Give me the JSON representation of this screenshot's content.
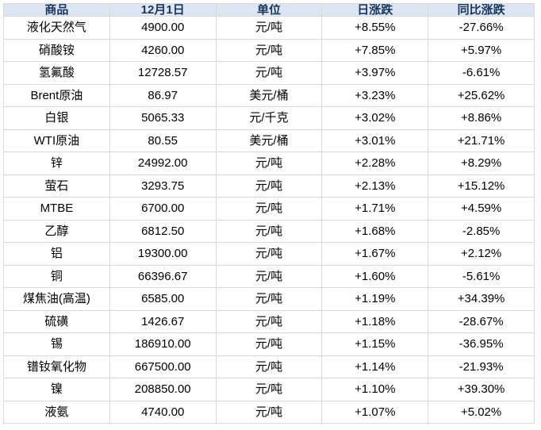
{
  "chart_data": {
    "type": "table",
    "title": "",
    "columns": [
      "商品",
      "12月1日",
      "单位",
      "日涨跌",
      "同比涨跌"
    ],
    "rows": [
      [
        "液化天然气",
        "4900.00",
        "元/吨",
        "+8.55%",
        "-27.66%"
      ],
      [
        "硝酸铵",
        "4260.00",
        "元/吨",
        "+7.85%",
        "+5.97%"
      ],
      [
        "氢氟酸",
        "12728.57",
        "元/吨",
        "+3.97%",
        "-6.61%"
      ],
      [
        "Brent原油",
        "86.97",
        "美元/桶",
        "+3.23%",
        "+25.62%"
      ],
      [
        "白银",
        "5065.33",
        "元/千克",
        "+3.02%",
        "+8.86%"
      ],
      [
        "WTI原油",
        "80.55",
        "美元/桶",
        "+3.01%",
        "+21.71%"
      ],
      [
        "锌",
        "24992.00",
        "元/吨",
        "+2.28%",
        "+8.29%"
      ],
      [
        "萤石",
        "3293.75",
        "元/吨",
        "+2.13%",
        "+15.12%"
      ],
      [
        "MTBE",
        "6700.00",
        "元/吨",
        "+1.71%",
        "+4.59%"
      ],
      [
        "乙醇",
        "6812.50",
        "元/吨",
        "+1.68%",
        "-2.85%"
      ],
      [
        "铝",
        "19300.00",
        "元/吨",
        "+1.67%",
        "+2.12%"
      ],
      [
        "铜",
        "66396.67",
        "元/吨",
        "+1.60%",
        "-5.61%"
      ],
      [
        "煤焦油(高温)",
        "6585.00",
        "元/吨",
        "+1.19%",
        "+34.39%"
      ],
      [
        "硫磺",
        "1426.67",
        "元/吨",
        "+1.18%",
        "-28.67%"
      ],
      [
        "锡",
        "186910.00",
        "元/吨",
        "+1.15%",
        "-36.95%"
      ],
      [
        "镨钕氧化物",
        "667500.00",
        "元/吨",
        "+1.14%",
        "-21.93%"
      ],
      [
        "镍",
        "208850.00",
        "元/吨",
        "+1.10%",
        "+39.30%"
      ],
      [
        "液氨",
        "4740.00",
        "元/吨",
        "+1.07%",
        "+5.02%"
      ]
    ],
    "layout": {
      "grid": true,
      "header_position": "top",
      "column_count": 5,
      "row_count": 18
    },
    "colors": {
      "positive_change": "#ff0000",
      "negative_change": "#008000",
      "header_background": "#dce6f2",
      "header_text": "#17375e",
      "grid_border": "#d9d9d9",
      "body_text": "#000000",
      "page_background": "#ffffff"
    }
  }
}
